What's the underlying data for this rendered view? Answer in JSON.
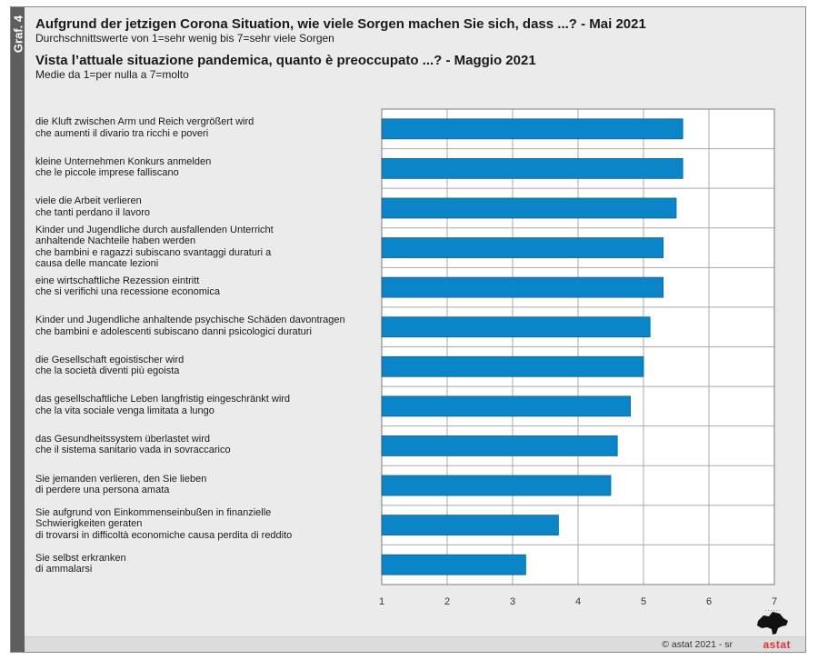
{
  "sidebar": {
    "label": "Graf. 4"
  },
  "header": {
    "title_de": "Aufgrund der jetzigen Corona Situation, wie viele Sorgen machen Sie sich, dass ...? - Mai 2021",
    "subtitle_de": "Durchschnittswerte von 1=sehr wenig bis 7=sehr viele Sorgen",
    "title_it": "Vista l’attuale situazione pandemica, quanto è preoccupato ...? - Maggio 2021",
    "subtitle_it": "Medie da 1=per nulla a 7=molto"
  },
  "footer": {
    "copyright": "© astat 2021 - sr",
    "brand": "astat"
  },
  "colors": {
    "bar": "#0a85c8",
    "bar_border": "#1f5f86",
    "grid": "#a9a9a9",
    "plot_bg": "#ffffff",
    "frame_bg": "#ebebeb",
    "sidebar": "#5e5e5e",
    "brand": "#e8323c"
  },
  "chart_data": {
    "type": "bar",
    "orientation": "horizontal",
    "title": "Aufgrund der jetzigen Corona Situation, wie viele Sorgen machen Sie sich, dass ...? - Mai 2021 / Vista l’attuale situazione pandemica, quanto è preoccupato ...? - Maggio 2021",
    "xlabel": "",
    "ylabel": "",
    "xlim": [
      1,
      7
    ],
    "xticks": [
      "1",
      "2",
      "3",
      "4",
      "5",
      "6",
      "7"
    ],
    "grid": true,
    "legend": "none",
    "categories": [
      [
        "die Kluft zwischen Arm und Reich vergrößert wird",
        "che aumenti il divario tra ricchi e poveri"
      ],
      [
        "kleine Unternehmen Konkurs anmelden",
        "che le piccole imprese falliscano"
      ],
      [
        "viele die Arbeit verlieren",
        "che tanti perdano il lavoro"
      ],
      [
        "Kinder und Jugendliche durch ausfallenden Unterricht",
        "anhaltende Nachteile haben werden",
        "che bambini e ragazzi subiscano svantaggi duraturi a",
        "causa delle mancate lezioni"
      ],
      [
        "eine wirtschaftliche Rezession eintritt",
        "che si verifichi una recessione economica"
      ],
      [
        "Kinder und Jugendliche anhaltende psychische Schäden davontragen",
        "che bambini e adolescenti subiscano danni psicologici duraturi"
      ],
      [
        "die Gesellschaft egoistischer wird",
        "che la società diventi più egoista"
      ],
      [
        "das gesellschaftliche Leben langfristig eingeschränkt wird",
        "che la vita sociale venga limitata a lungo"
      ],
      [
        "das Gesundheitssystem überlastet wird",
        "che il sistema sanitario vada in sovraccarico"
      ],
      [
        "Sie jemanden verlieren, den Sie lieben",
        "di perdere una persona amata"
      ],
      [
        "Sie aufgrund von Einkommenseinbußen in finanzielle",
        "Schwierigkeiten geraten",
        "di trovarsi in difficoltà economiche causa perdita di reddito"
      ],
      [
        "Sie selbst erkranken",
        "di ammalarsi"
      ]
    ],
    "values": [
      5.6,
      5.6,
      5.5,
      5.3,
      5.3,
      5.1,
      5.0,
      4.8,
      4.6,
      4.5,
      3.7,
      3.2
    ]
  }
}
